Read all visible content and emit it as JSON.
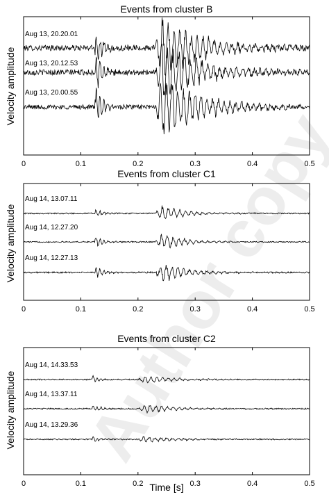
{
  "watermark": "Author copy",
  "chart_data": [
    {
      "type": "line",
      "title": "Events from cluster B",
      "ylabel": "Velocity amplitude",
      "xlabel": "",
      "xlim": [
        0,
        0.5
      ],
      "xticks": [
        "0",
        "0.1",
        "0.2",
        "0.3",
        "0.4",
        "0.5"
      ],
      "grid": false,
      "series": [
        {
          "name": "Aug 13, 20.20.01",
          "onsets": [
            0.125,
            0.24
          ],
          "p_amp": 0.55,
          "s_amp": 1.0,
          "noise": 0.12,
          "decay": 0.07
        },
        {
          "name": "Aug 13, 20.12.53",
          "onsets": [
            0.125,
            0.24
          ],
          "p_amp": 0.6,
          "s_amp": 1.0,
          "noise": 0.12,
          "decay": 0.07
        },
        {
          "name": "Aug 13, 20.00.55",
          "onsets": [
            0.125,
            0.24
          ],
          "p_amp": 0.65,
          "s_amp": 1.0,
          "noise": 0.1,
          "decay": 0.07
        }
      ]
    },
    {
      "type": "line",
      "title": "Events from cluster C1",
      "ylabel": "Velocity amplitude",
      "xlabel": "",
      "xlim": [
        0,
        0.5
      ],
      "xticks": [
        "0",
        "0.1",
        "0.2",
        "0.3",
        "0.4",
        "0.5"
      ],
      "grid": false,
      "series": [
        {
          "name": "Aug 14, 13.07.11",
          "onsets": [
            0.125,
            0.24
          ],
          "p_amp": 0.3,
          "s_amp": 0.55,
          "noise": 0.05,
          "decay": 0.04
        },
        {
          "name": "Aug 14, 12.27.20",
          "onsets": [
            0.125,
            0.24
          ],
          "p_amp": 0.35,
          "s_amp": 0.6,
          "noise": 0.05,
          "decay": 0.04
        },
        {
          "name": "Aug 14, 12.27.13",
          "onsets": [
            0.125,
            0.24
          ],
          "p_amp": 0.4,
          "s_amp": 0.65,
          "noise": 0.06,
          "decay": 0.045
        }
      ]
    },
    {
      "type": "line",
      "title": "Events from cluster C2",
      "ylabel": "Velocity amplitude",
      "xlabel": "Time [s]",
      "xlim": [
        0,
        0.5
      ],
      "xticks": [
        "0",
        "0.1",
        "0.2",
        "0.3",
        "0.4",
        "0.5"
      ],
      "grid": false,
      "series": [
        {
          "name": "Aug 14, 14.33.53",
          "onsets": [
            0.12,
            0.21
          ],
          "p_amp": 0.22,
          "s_amp": 0.25,
          "noise": 0.05,
          "decay": 0.05
        },
        {
          "name": "Aug 14, 13.37.11",
          "onsets": [
            0.12,
            0.21
          ],
          "p_amp": 0.25,
          "s_amp": 0.28,
          "noise": 0.05,
          "decay": 0.05
        },
        {
          "name": "Aug 14, 13.29.36",
          "onsets": [
            0.12,
            0.21
          ],
          "p_amp": 0.18,
          "s_amp": 0.22,
          "noise": 0.05,
          "decay": 0.05
        }
      ]
    }
  ]
}
